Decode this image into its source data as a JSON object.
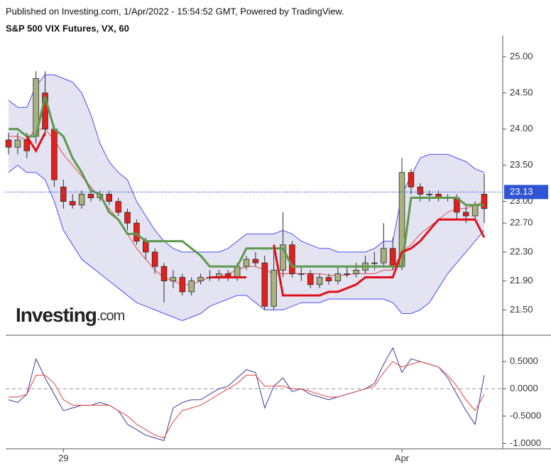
{
  "chart_data": {
    "type": "candlestick",
    "header": "Published on Investing.com, 1/Apr/2022 - 15:54:52 GMT, Powered by TradingView.",
    "title": "S&P 500 VIX Futures, VX, 60",
    "logo": {
      "name": "Investing",
      "suffix": ".com"
    },
    "categories": [
      null,
      null,
      null,
      null,
      null,
      null,
      "29",
      null,
      null,
      null,
      null,
      null,
      null,
      null,
      null,
      null,
      null,
      null,
      null,
      null,
      null,
      null,
      null,
      null,
      null,
      null,
      null,
      null,
      null,
      null,
      null,
      null,
      null,
      null,
      null,
      null,
      null,
      null,
      null,
      null,
      null,
      null,
      null,
      "Apr",
      null,
      null,
      null,
      null,
      null,
      null,
      null,
      null,
      null
    ],
    "open": [
      23.85,
      23.75,
      23.85,
      23.9,
      24.5,
      24.0,
      23.2,
      23.0,
      22.95,
      23.1,
      23.05,
      23.1,
      23.0,
      22.85,
      22.7,
      22.45,
      22.3,
      22.1,
      21.9,
      21.95,
      21.75,
      21.9,
      21.95,
      21.95,
      22.0,
      21.95,
      22.1,
      22.2,
      22.15,
      21.55,
      22.05,
      22.4,
      22.0,
      22.0,
      21.85,
      21.95,
      21.9,
      22.0,
      22.0,
      22.05,
      22.15,
      22.15,
      22.35,
      22.1,
      23.4,
      23.2,
      23.1,
      23.1,
      23.05,
      23.05,
      22.85,
      22.8,
      23.1
    ],
    "high": [
      23.95,
      23.95,
      23.95,
      24.8,
      24.8,
      24.05,
      23.3,
      23.1,
      23.15,
      23.15,
      23.15,
      23.15,
      23.05,
      22.9,
      22.75,
      22.5,
      22.35,
      22.15,
      22.05,
      22.0,
      21.95,
      22.0,
      22.05,
      22.05,
      22.05,
      22.15,
      22.25,
      22.3,
      22.25,
      22.35,
      22.85,
      22.45,
      22.1,
      22.05,
      22.0,
      22.0,
      22.1,
      22.1,
      22.15,
      22.25,
      22.3,
      22.7,
      22.5,
      23.6,
      23.45,
      23.25,
      23.15,
      23.15,
      23.1,
      23.1,
      22.95,
      23.0,
      23.38
    ],
    "low": [
      23.65,
      23.65,
      23.6,
      23.8,
      23.9,
      23.2,
      22.9,
      22.9,
      22.9,
      23.0,
      23.0,
      22.95,
      22.8,
      22.6,
      22.4,
      22.2,
      22.0,
      21.6,
      21.8,
      21.7,
      21.7,
      21.85,
      21.9,
      21.9,
      21.9,
      21.9,
      22.05,
      22.1,
      21.5,
      21.5,
      21.95,
      21.95,
      21.9,
      21.8,
      21.8,
      21.85,
      21.85,
      21.95,
      21.95,
      22.0,
      22.05,
      22.1,
      22.05,
      22.05,
      23.1,
      23.0,
      23.0,
      23.0,
      23.0,
      22.75,
      22.7,
      22.75,
      22.7
    ],
    "close": [
      23.75,
      23.85,
      23.7,
      24.7,
      24.0,
      23.3,
      23.0,
      22.95,
      23.1,
      23.05,
      23.1,
      23.0,
      22.85,
      22.7,
      22.45,
      22.3,
      22.1,
      21.9,
      21.95,
      21.75,
      21.9,
      21.95,
      21.95,
      22.0,
      21.95,
      22.1,
      22.2,
      22.15,
      21.55,
      22.05,
      22.4,
      22.0,
      22.0,
      21.85,
      21.95,
      21.9,
      22.0,
      22.0,
      22.05,
      22.15,
      22.15,
      22.35,
      22.1,
      23.4,
      23.2,
      23.1,
      23.1,
      23.05,
      23.05,
      22.85,
      22.8,
      22.95,
      22.9
    ],
    "up_color": "#a9b27c",
    "down_color": "#e3211c",
    "band_upper": [
      24.4,
      24.3,
      24.3,
      24.6,
      24.75,
      24.75,
      24.7,
      24.65,
      24.5,
      24.2,
      23.8,
      23.55,
      23.4,
      23.3,
      23.0,
      22.8,
      22.6,
      22.45,
      22.35,
      22.3,
      22.3,
      22.3,
      22.3,
      22.3,
      22.35,
      22.45,
      22.55,
      22.55,
      22.55,
      22.55,
      22.6,
      22.55,
      22.45,
      22.4,
      22.35,
      22.35,
      22.3,
      22.3,
      22.3,
      22.3,
      22.35,
      22.45,
      22.45,
      23.1,
      23.35,
      23.6,
      23.65,
      23.65,
      23.65,
      23.6,
      23.55,
      23.45,
      23.4
    ],
    "band_lower": [
      23.4,
      23.5,
      23.4,
      23.4,
      23.3,
      23.0,
      22.6,
      22.4,
      22.2,
      22.1,
      22.0,
      21.9,
      21.8,
      21.7,
      21.6,
      21.55,
      21.5,
      21.45,
      21.4,
      21.35,
      21.4,
      21.45,
      21.55,
      21.6,
      21.65,
      21.7,
      21.7,
      21.6,
      21.5,
      21.5,
      21.5,
      21.55,
      21.6,
      21.6,
      21.6,
      21.65,
      21.65,
      21.65,
      21.65,
      21.65,
      21.65,
      21.65,
      21.6,
      21.45,
      21.45,
      21.5,
      21.6,
      21.8,
      22.0,
      22.15,
      22.3,
      22.45,
      22.6
    ],
    "band_color": "#4b4ff0",
    "band_fill": "#e3e3f2",
    "band_mid": [
      23.9,
      23.9,
      23.85,
      24.0,
      24.0,
      23.85,
      23.65,
      23.5,
      23.35,
      23.2,
      23.05,
      22.9,
      22.75,
      22.55,
      22.35,
      22.2,
      22.05,
      21.95,
      21.9,
      21.85,
      21.85,
      21.9,
      21.95,
      21.95,
      22.0,
      22.05,
      22.1,
      22.1,
      22.05,
      22.0,
      22.0,
      22.0,
      22.0,
      22.0,
      22.0,
      21.98,
      21.98,
      21.98,
      22.0,
      22.0,
      22.0,
      22.05,
      22.05,
      22.3,
      22.4,
      22.55,
      22.65,
      22.75,
      22.85,
      22.9,
      22.9,
      22.95,
      23.0
    ],
    "mid_color": "#e35050",
    "stop_green": [
      24.0,
      24.0,
      23.9,
      23.9,
      24.45,
      24.0,
      23.9,
      23.6,
      23.4,
      23.15,
      23.1,
      22.85,
      22.75,
      22.55,
      22.55,
      22.45,
      22.45,
      22.45,
      22.45,
      22.45,
      22.35,
      22.25,
      22.1,
      22.1,
      22.1,
      22.1,
      22.35,
      22.35,
      22.35,
      22.35,
      22.35,
      22.1,
      22.1,
      22.1,
      22.1,
      22.1,
      22.1,
      22.1,
      22.1,
      22.1,
      22.1,
      22.1,
      22.1,
      22.1,
      23.05,
      23.05,
      23.05,
      23.05,
      23.05,
      23.05,
      22.95,
      22.95,
      22.95
    ],
    "green_color": "#5c9a4c",
    "stop_red": [
      null,
      null,
      23.9,
      23.7,
      23.95,
      null,
      null,
      null,
      null,
      null,
      null,
      null,
      null,
      null,
      null,
      null,
      null,
      null,
      null,
      null,
      null,
      null,
      21.95,
      21.95,
      21.95,
      21.95,
      21.95,
      null,
      null,
      22.4,
      21.7,
      21.7,
      21.7,
      21.7,
      21.7,
      21.75,
      21.75,
      21.8,
      21.85,
      21.95,
      21.95,
      21.95,
      21.95,
      22.3,
      22.35,
      22.45,
      22.6,
      22.75,
      22.75,
      22.75,
      22.75,
      22.75,
      22.5
    ],
    "red_color": "#e0101a",
    "last_price": 23.13,
    "last_color": "#2f55d4",
    "ylim": [
      21.15,
      25.245
    ],
    "yticks": [
      {
        "value": 25,
        "label": "25.00"
      },
      {
        "value": 24.5,
        "label": "24.50"
      },
      {
        "value": 24,
        "label": "24.00"
      },
      {
        "value": 23.5,
        "label": "23.50"
      },
      {
        "value": 23,
        "label": "23.00"
      },
      {
        "value": 22.7,
        "label": "22.70"
      },
      {
        "value": 22.3,
        "label": "22.30"
      },
      {
        "value": 21.9,
        "label": "21.90"
      },
      {
        "value": 21.5,
        "label": "21.50"
      }
    ],
    "oscillator": {
      "series": [
        {
          "name": "signal-fast",
          "color": "#3a3a9a",
          "values": [
            -0.2,
            -0.25,
            -0.1,
            0.55,
            0.2,
            -0.1,
            -0.4,
            -0.35,
            -0.3,
            -0.3,
            -0.25,
            -0.3,
            -0.4,
            -0.65,
            -0.75,
            -0.85,
            -0.9,
            -0.95,
            -0.35,
            -0.25,
            -0.2,
            -0.2,
            -0.1,
            0.0,
            0.05,
            0.2,
            0.35,
            0.3,
            -0.35,
            0.05,
            0.2,
            -0.05,
            0.0,
            -0.1,
            -0.15,
            -0.2,
            -0.15,
            -0.1,
            -0.05,
            0.0,
            0.1,
            0.45,
            0.75,
            0.3,
            0.55,
            0.5,
            0.45,
            0.4,
            0.2,
            -0.1,
            -0.4,
            -0.65,
            0.25
          ]
        },
        {
          "name": "signal-slow",
          "color": "#e34040",
          "values": [
            -0.15,
            -0.15,
            -0.1,
            0.25,
            0.25,
            0.1,
            -0.2,
            -0.3,
            -0.3,
            -0.3,
            -0.3,
            -0.3,
            -0.4,
            -0.5,
            -0.65,
            -0.75,
            -0.85,
            -0.9,
            -0.6,
            -0.4,
            -0.35,
            -0.3,
            -0.2,
            -0.1,
            0.0,
            0.1,
            0.25,
            0.25,
            0.05,
            0.05,
            0.05,
            0.0,
            0.0,
            -0.05,
            -0.1,
            -0.15,
            -0.15,
            -0.1,
            -0.05,
            0.0,
            0.05,
            0.3,
            0.5,
            0.4,
            0.45,
            0.5,
            0.45,
            0.4,
            0.25,
            0.05,
            -0.2,
            -0.4,
            -0.1
          ]
        }
      ],
      "ylim": [
        -1.1,
        0.957
      ],
      "yticks": [
        {
          "value": 0.5,
          "label": "0.5000"
        },
        {
          "value": 0,
          "label": "0.0000"
        },
        {
          "value": -0.5,
          "label": "-0.5000"
        },
        {
          "value": -1,
          "label": "-1.0000"
        }
      ],
      "zero_line": 0
    }
  }
}
